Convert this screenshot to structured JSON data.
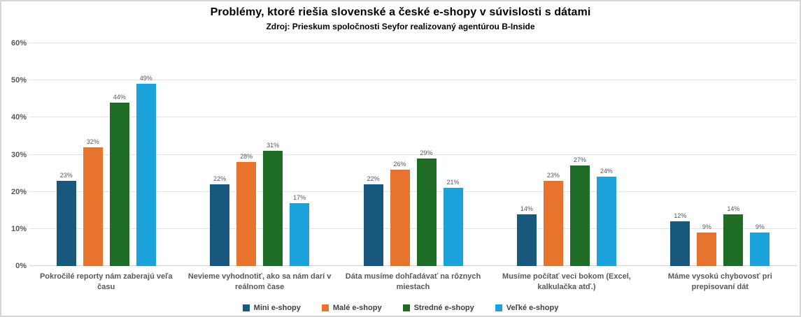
{
  "chart_data": {
    "type": "bar",
    "title": "Problémy, ktoré riešia slovenské a české e-shopy v súvislosti s dátami",
    "subtitle": "Zdroj: Prieskum spoločnosti Seyfor realizovaný agentúrou B-Inside",
    "categories": [
      "Pokročilé reporty nám zaberajú veľa času",
      "Nevieme vyhodnotiť, ako sa nám darí v reálnom čase",
      "Dáta musíme dohľadávať na rôznych miestach",
      "Musíme počítať veci bokom (Excel, kalkulačka atď.)",
      "Máme vysokú chybovosť pri prepisovaní dát"
    ],
    "series": [
      {
        "name": "Mini e-shopy",
        "color": "#19587D",
        "values": [
          23,
          22,
          22,
          14,
          12
        ]
      },
      {
        "name": "Malé e-shopy",
        "color": "#E8732D",
        "values": [
          32,
          28,
          26,
          23,
          9
        ]
      },
      {
        "name": "Stredné e-shopy",
        "color": "#1E6C26",
        "values": [
          44,
          31,
          29,
          27,
          14
        ]
      },
      {
        "name": "Veľké e-shopy",
        "color": "#1BA2DB",
        "values": [
          49,
          17,
          21,
          24,
          9
        ]
      }
    ],
    "ylabel": "",
    "xlabel": "",
    "ylim": [
      0,
      60
    ],
    "yticks": [
      0,
      10,
      20,
      30,
      40,
      50,
      60
    ],
    "ytick_suffix": "%",
    "value_label_suffix": "%",
    "grid": true,
    "legend_position": "bottom"
  },
  "style": {
    "grid_color": "#e4e4e4",
    "axis_color": "#d2d2d2",
    "label_color": "#595959",
    "legend_text_color": "#404040",
    "title_color": "#000000",
    "background": "#ffffff",
    "border_color": "#d6d6d6"
  }
}
